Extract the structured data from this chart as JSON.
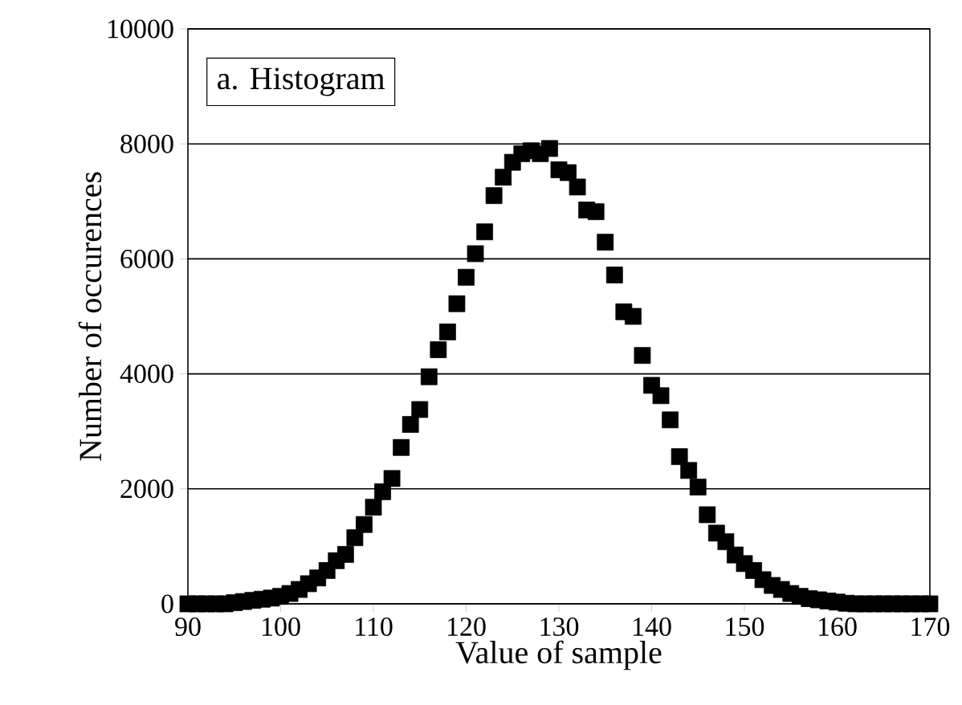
{
  "chart_data": {
    "type": "scatter",
    "xlabel": "Value of sample",
    "ylabel": "Number of occurences",
    "annotations": [
      "a.  Histogram"
    ],
    "x": [
      90,
      91,
      92,
      93,
      94,
      95,
      96,
      97,
      98,
      99,
      100,
      101,
      102,
      103,
      104,
      105,
      106,
      107,
      108,
      109,
      110,
      111,
      112,
      113,
      114,
      115,
      116,
      117,
      118,
      119,
      120,
      121,
      122,
      123,
      124,
      125,
      126,
      127,
      128,
      129,
      130,
      131,
      132,
      133,
      134,
      135,
      136,
      137,
      138,
      139,
      140,
      141,
      142,
      143,
      144,
      145,
      146,
      147,
      148,
      149,
      150,
      151,
      152,
      153,
      154,
      155,
      156,
      157,
      158,
      159,
      160,
      161,
      162,
      163,
      164,
      165,
      166,
      167,
      168,
      169,
      170
    ],
    "values": [
      0,
      0,
      0,
      0,
      0,
      20,
      40,
      60,
      80,
      100,
      130,
      180,
      250,
      350,
      450,
      580,
      750,
      860,
      1150,
      1380,
      1680,
      1950,
      2180,
      2720,
      3120,
      3380,
      3950,
      4420,
      4730,
      5220,
      5680,
      6090,
      6470,
      7100,
      7420,
      7680,
      7830,
      7880,
      7830,
      7920,
      7550,
      7500,
      7250,
      6850,
      6820,
      6290,
      5720,
      5080,
      5000,
      4320,
      3800,
      3620,
      3200,
      2560,
      2320,
      2030,
      1550,
      1230,
      1080,
      850,
      700,
      580,
      420,
      320,
      250,
      180,
      130,
      90,
      70,
      50,
      30,
      10,
      0,
      0,
      0,
      0,
      0,
      0,
      0,
      0,
      0
    ],
    "color": "#000000",
    "marker": "square",
    "grid": "y",
    "xlim": [
      90,
      170
    ],
    "ylim": [
      0,
      10000
    ],
    "xticks": [
      90,
      100,
      110,
      120,
      130,
      140,
      150,
      160,
      170
    ],
    "yticks": [
      0,
      2000,
      4000,
      6000,
      8000,
      10000
    ]
  }
}
